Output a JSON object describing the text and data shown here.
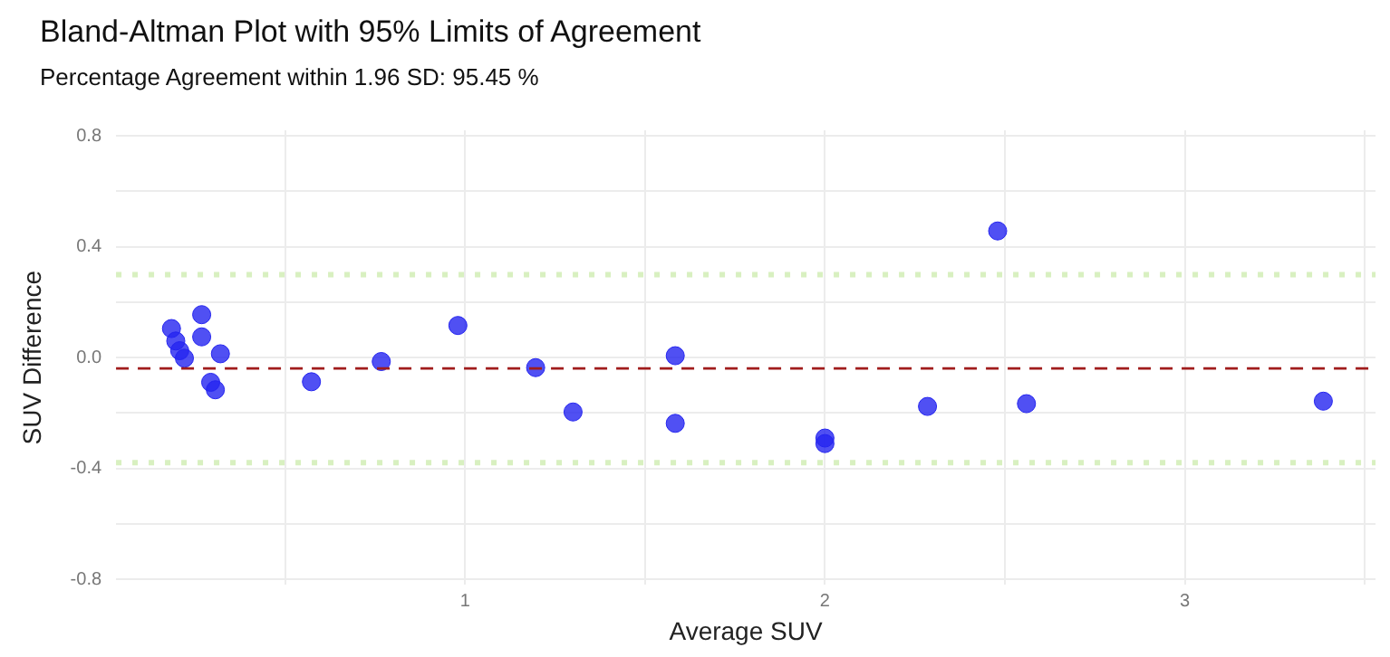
{
  "chart_data": {
    "type": "scatter",
    "title": "Bland-Altman Plot with 95% Limits of Agreement",
    "subtitle": "Percentage Agreement within 1.96 SD: 95.45 %",
    "xlabel": "Average SUV",
    "ylabel": "SUV Difference",
    "x": [
      0.184,
      0.196,
      0.207,
      0.22,
      0.268,
      0.268,
      0.32,
      0.293,
      0.306,
      0.573,
      0.767,
      0.98,
      1.196,
      1.3,
      1.584,
      1.584,
      2.48,
      2.0,
      2.0,
      2.285,
      2.56,
      3.385
    ],
    "series": [
      {
        "color": "#2424f0",
        "values": [
          0.105,
          0.06,
          0.025,
          -0.002,
          0.155,
          0.075,
          0.014,
          -0.089,
          -0.116,
          -0.087,
          -0.014,
          0.116,
          -0.036,
          -0.196,
          0.007,
          -0.237,
          0.457,
          -0.29,
          -0.31,
          -0.176,
          -0.166,
          -0.157
        ]
      }
    ],
    "xlim": [
      0.03,
      3.53
    ],
    "ylim": [
      -0.82,
      0.82
    ],
    "xticks": [
      {
        "value": 0.5,
        "label": null
      },
      1,
      {
        "value": 1.5,
        "label": null
      },
      2,
      {
        "value": 2.5,
        "label": null
      },
      3,
      {
        "value": 3.5,
        "label": null
      }
    ],
    "yticks": [
      {
        "value": -0.8,
        "label": "-0.8"
      },
      {
        "value": -0.6,
        "label": null
      },
      {
        "value": -0.4,
        "label": "-0.4"
      },
      {
        "value": -0.2,
        "label": null
      },
      {
        "value": 0,
        "label": "0.0"
      },
      {
        "value": 0.2,
        "label": null
      },
      {
        "value": 0.4,
        "label": "0.4"
      },
      {
        "value": 0.6,
        "label": null
      },
      {
        "value": 0.8,
        "label": "0.8"
      }
    ],
    "ref_lines": [
      {
        "axis": "y",
        "value": -0.039,
        "color": "#a01c1c",
        "line_style": "dashed"
      },
      {
        "axis": "y",
        "value": 0.299,
        "color": "#d8f0c0",
        "line_style": "dotted"
      },
      {
        "axis": "y",
        "value": -0.379,
        "color": "#d8f0c0",
        "line_style": "dotted"
      }
    ],
    "grid": true,
    "legend": false,
    "marker": "circle"
  }
}
